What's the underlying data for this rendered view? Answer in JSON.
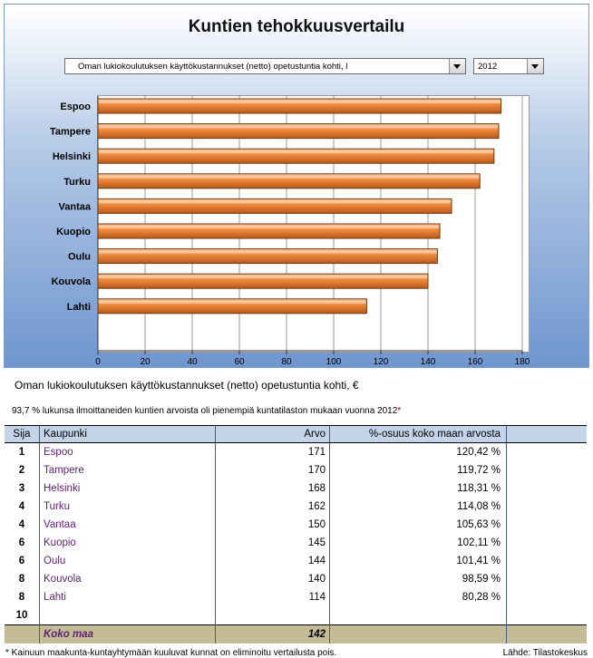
{
  "title": "Kuntien tehokkuusvertailu",
  "metric_select": {
    "value": "Oman lukiokoulutuksen käyttökustannukset (netto) opetustuntia kohti, l"
  },
  "year_select": {
    "value": "2012"
  },
  "caption": "Oman lukiokoulutuksen käyttökustannukset (netto) opetustuntia kohti, €",
  "note": {
    "percent": "93,7 %",
    "text": "lukunsa ilmoittaneiden kuntien arvoista oli pienempiä kuntatilaston mukaan vuonna 2012",
    "marker": "*"
  },
  "table": {
    "headers": [
      "Sija",
      "Kaupunki",
      "Arvo",
      "%-osuus koko maan arvosta",
      ""
    ],
    "rows": [
      {
        "rank": "1",
        "city": "Espoo",
        "value": "171",
        "share": "120,42 %"
      },
      {
        "rank": "2",
        "city": "Tampere",
        "value": "170",
        "share": "119,72 %"
      },
      {
        "rank": "3",
        "city": "Helsinki",
        "value": "168",
        "share": "118,31 %"
      },
      {
        "rank": "4",
        "city": "Turku",
        "value": "162",
        "share": "114,08 %"
      },
      {
        "rank": "4",
        "city": "Vantaa",
        "value": "150",
        "share": "105,63 %"
      },
      {
        "rank": "6",
        "city": "Kuopio",
        "value": "145",
        "share": "102,11 %"
      },
      {
        "rank": "6",
        "city": "Oulu",
        "value": "144",
        "share": "101,41 %"
      },
      {
        "rank": "8",
        "city": "Kouvola",
        "value": "140",
        "share": "98,59 %"
      },
      {
        "rank": "8",
        "city": "Lahti",
        "value": "114",
        "share": "80,28 %"
      },
      {
        "rank": "10",
        "city": "",
        "value": "",
        "share": ""
      }
    ],
    "footer": {
      "label": "Koko maa",
      "value": "142"
    }
  },
  "footnote": "* Kainuun maakunta-kuntayhtymään kuuluvat kunnat on eliminoitu vertailusta pois.",
  "source": "Lähde: Tilastokeskus",
  "colors": {
    "bar": "#f08a3c",
    "bar_light": "#fbc79a",
    "bar_dark": "#b85a1a",
    "header_bg": "#c3d3e8",
    "footer_bg": "#c4bc96",
    "city_text": "#5d2275"
  },
  "chart_data": {
    "type": "bar",
    "orientation": "horizontal",
    "categories": [
      "Espoo",
      "Tampere",
      "Helsinki",
      "Turku",
      "Vantaa",
      "Kuopio",
      "Oulu",
      "Kouvola",
      "Lahti"
    ],
    "values": [
      171,
      170,
      168,
      162,
      150,
      145,
      144,
      140,
      114
    ],
    "xlim": [
      0,
      180
    ],
    "xticks": [
      "0",
      "20",
      "40",
      "60",
      "80",
      "100",
      "120",
      "140",
      "160",
      "180"
    ],
    "grid": true
  }
}
